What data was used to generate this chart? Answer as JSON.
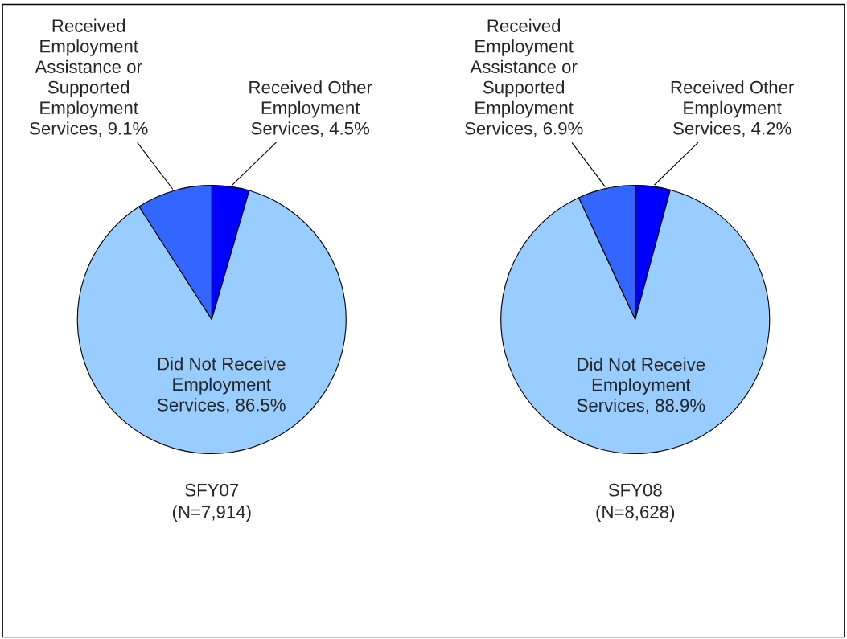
{
  "chart_data": [
    {
      "type": "pie",
      "xlabel": "SFY07\n(N=7,914)",
      "categories": [
        "Received Other Employment Services",
        "Did Not Receive Employment Services",
        "Received Employment Assistance or Supported Employment Services"
      ],
      "values": [
        4.5,
        86.5,
        9.1
      ],
      "value_labels": [
        "4.5%",
        "86.5%",
        "9.1%"
      ],
      "colors": [
        "#0000ff",
        "#99ccff",
        "#3366ff"
      ]
    },
    {
      "type": "pie",
      "xlabel": "SFY08\n(N=8,628)",
      "categories": [
        "Received Other Employment Services",
        "Did Not Receive Employment Services",
        "Received Employment Assistance or Supported Employment Services"
      ],
      "values": [
        4.2,
        88.9,
        6.9
      ],
      "value_labels": [
        "4.2%",
        "88.9%",
        "6.9%"
      ],
      "colors": [
        "#0000ff",
        "#99ccff",
        "#3366ff"
      ]
    }
  ]
}
